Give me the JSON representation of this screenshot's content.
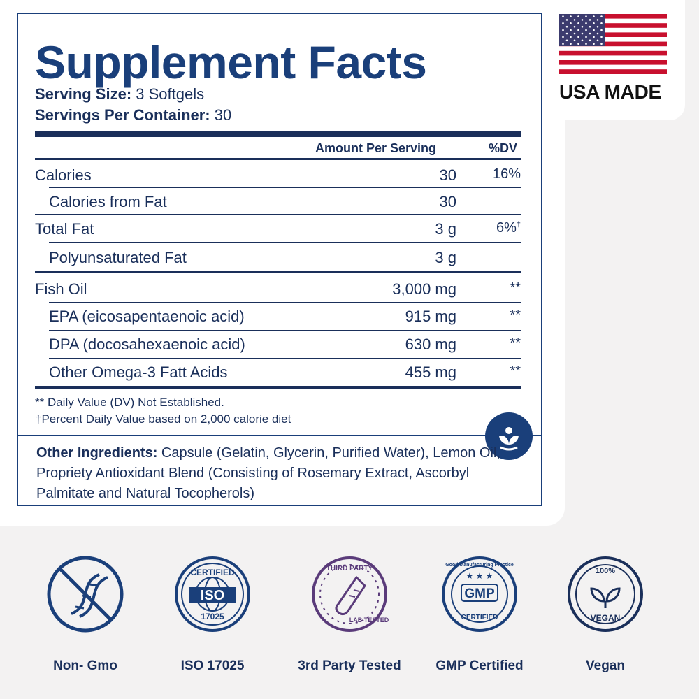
{
  "title": "Supplement Facts",
  "serving_size_label": "Serving Size:",
  "serving_size_value": "3 Softgels",
  "servings_label": "Servings Per Container:",
  "servings_value": "30",
  "headers": {
    "amount": "Amount Per Serving",
    "dv": "%DV"
  },
  "rows": [
    {
      "name": "Calories",
      "amount": "30",
      "dv": "16%"
    },
    {
      "name": "Calories from Fat",
      "amount": "30",
      "dv": ""
    },
    {
      "name": "Total Fat",
      "amount": "3 g",
      "dv": "6%",
      "dv_mark": "†"
    },
    {
      "name": "Polyunsaturated Fat",
      "amount": "3 g",
      "dv": ""
    },
    {
      "name": "Fish Oil",
      "amount": "3,000 mg",
      "dv": "**"
    },
    {
      "name": "EPA (eicosapentaenoic acid)",
      "amount": "915 mg",
      "dv": "**"
    },
    {
      "name": "DPA (docosahexaenoic acid)",
      "amount": "630 mg",
      "dv": "**"
    },
    {
      "name": "Other Omega-3 Fatt Acids",
      "amount": "455 mg",
      "dv": "**"
    }
  ],
  "notes": [
    "** Daily Value (DV) Not Established.",
    "†Percent Daily Value based on 2,000 calorie diet"
  ],
  "ingredients_label": "Other Ingredients:",
  "ingredients_text": "Capsule (Gelatin, Glycerin, Purified Water), Lemon Oil, Propriety Antioxidant Blend (Consisting of Rosemary Extract, Ascorbyl Palmitate and Natural Tocopherols)",
  "usa_label": "USA MADE",
  "badges": {
    "nongmo": "Non- Gmo",
    "iso": "ISO 17025",
    "third": "3rd Party Tested",
    "gmp": "GMP Certified",
    "vegan": "Vegan"
  },
  "badge_texts": {
    "iso_top": "CERTIFIED",
    "iso_mid": "ISO",
    "iso_bottom": "17025",
    "third_top": "THIRD PARTY",
    "third_bottom": "LAB TESTED",
    "gmp_top": "Good Manufacturing Practice",
    "gmp_mid": "GMP",
    "gmp_bottom": "CERTIFIED",
    "vegan_top": "100%",
    "vegan_bottom": "VEGAN"
  },
  "colors": {
    "navy": "#1a3f7a",
    "text": "#1a2f5a",
    "purple": "#5a3b7a",
    "flag_red": "#c8102e",
    "flag_blue": "#3c3b6e"
  }
}
